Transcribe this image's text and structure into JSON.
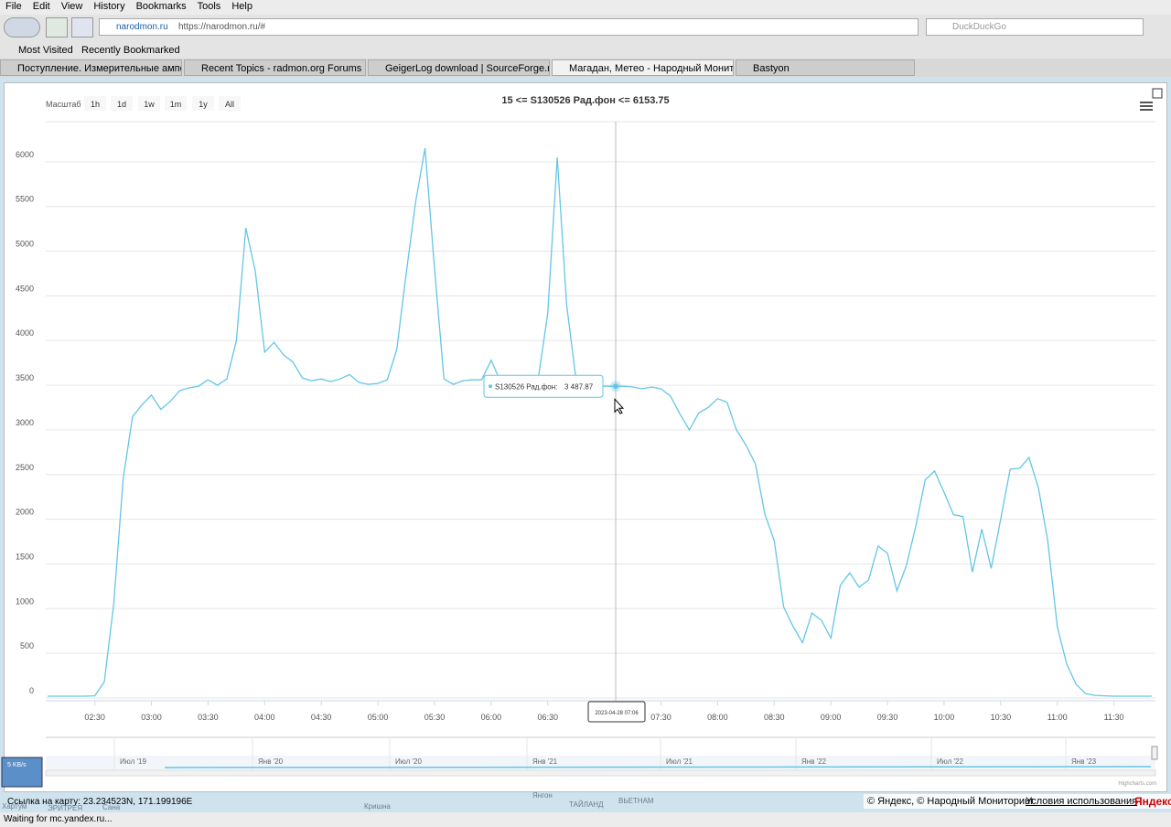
{
  "browser": {
    "menu": [
      "File",
      "Edit",
      "View",
      "History",
      "Bookmarks",
      "Tools",
      "Help"
    ],
    "site": "narodmon.ru",
    "url": "https://narodmon.ru/#",
    "search": "DuckDuckGo",
    "bookmarks": [
      "Most Visited",
      "Recently Bookmarked"
    ],
    "tabs": [
      "Поступление. Измерительные ампермет...",
      "Recent Topics - radmon.org Forums",
      "GeigerLog download | SourceForge.net",
      "Магадан, Метео - Народный Мониторинг",
      "Bastyon"
    ],
    "status": "Waiting for mc.yandex.ru..."
  },
  "map": {
    "coords": "Ссылка на карту: 23.234523N, 171.199196E",
    "copyright": "© Яндекс, © Народный Мониторинг",
    "terms": "Условия использования",
    "logo": "Яндекс",
    "speed": "5 KB/s",
    "places": [
      "Хартум",
      "ЭРИТРЕЯ",
      "Сана",
      "Кришна",
      "Янгон",
      "ТАЙЛАНД",
      "ВЬЕТНАМ"
    ]
  },
  "chart_data": {
    "type": "line",
    "title": "15 <= S130526 Рад.фон <= 6153.75",
    "range_label": "Масштаб",
    "range_buttons": [
      "1h",
      "1d",
      "1w",
      "1m",
      "1y",
      "All"
    ],
    "color": "#63c6e6",
    "x": [
      "02:05",
      "02:10",
      "02:15",
      "02:20",
      "02:25",
      "02:30",
      "02:35",
      "02:40",
      "02:45",
      "02:50",
      "02:55",
      "03:00",
      "03:05",
      "03:10",
      "03:15",
      "03:20",
      "03:25",
      "03:30",
      "03:35",
      "03:40",
      "03:45",
      "03:50",
      "03:55",
      "04:00",
      "04:05",
      "04:10",
      "04:15",
      "04:20",
      "04:25",
      "04:30",
      "04:35",
      "04:40",
      "04:45",
      "04:50",
      "04:55",
      "05:00",
      "05:05",
      "05:10",
      "05:15",
      "05:20",
      "05:25",
      "05:30",
      "05:35",
      "05:40",
      "05:45",
      "05:50",
      "05:55",
      "06:00",
      "06:05",
      "06:10",
      "06:15",
      "06:20",
      "06:25",
      "06:30",
      "06:35",
      "06:40",
      "06:45",
      "06:50",
      "06:55",
      "07:00",
      "07:05",
      "07:10",
      "07:15",
      "07:20",
      "07:25",
      "07:30",
      "07:35",
      "07:40",
      "07:45",
      "07:50",
      "07:55",
      "08:00",
      "08:05",
      "08:10",
      "08:15",
      "08:20",
      "08:25",
      "08:30",
      "08:35",
      "08:40",
      "08:45",
      "08:50",
      "08:55",
      "09:00",
      "09:05",
      "09:10",
      "09:15",
      "09:20",
      "09:25",
      "09:30",
      "09:35",
      "09:40",
      "09:45",
      "09:50",
      "09:55",
      "10:00",
      "10:05",
      "10:10",
      "10:15",
      "10:20",
      "10:25",
      "10:30",
      "10:35",
      "10:40",
      "10:45",
      "10:50",
      "10:55",
      "11:00",
      "11:05",
      "11:10",
      "11:15",
      "11:20",
      "11:25",
      "11:30",
      "11:35",
      "11:40",
      "11:45",
      "11:50"
    ],
    "values": [
      20,
      20,
      20,
      20,
      20,
      25,
      180,
      1050,
      2450,
      3150,
      3280,
      3390,
      3230,
      3320,
      3440,
      3470,
      3490,
      3560,
      3500,
      3570,
      4000,
      5260,
      4780,
      3870,
      3980,
      3840,
      3760,
      3580,
      3550,
      3570,
      3540,
      3570,
      3620,
      3530,
      3510,
      3520,
      3560,
      3900,
      4750,
      5550,
      6154,
      4800,
      3570,
      3510,
      3550,
      3560,
      3560,
      3780,
      3540,
      3560,
      3570,
      3570,
      3580,
      4300,
      6050,
      4400,
      3560,
      3500,
      3490,
      3490,
      3487.87,
      3490,
      3480,
      3460,
      3480,
      3460,
      3380,
      3180,
      3000,
      3190,
      3250,
      3350,
      3310,
      3000,
      2830,
      2620,
      2060,
      1760,
      1020,
      800,
      620,
      950,
      870,
      670,
      1260,
      1400,
      1240,
      1320,
      1700,
      1620,
      1200,
      1480,
      1920,
      2440,
      2540,
      2300,
      2050,
      2030,
      1410,
      1890,
      1450,
      2000,
      2560,
      2570,
      2690,
      2350,
      1750,
      800,
      380,
      150,
      50,
      30,
      25,
      20,
      20,
      20,
      20,
      20
    ],
    "xlim": [
      "02:04",
      "11:52"
    ],
    "xticks": [
      "02:30",
      "03:00",
      "03:30",
      "04:00",
      "04:30",
      "05:00",
      "05:30",
      "06:00",
      "06:30",
      "07:00",
      "07:30",
      "08:00",
      "08:30",
      "09:00",
      "09:30",
      "10:00",
      "10:30",
      "11:00",
      "11:30"
    ],
    "ylim": [
      0,
      6500
    ],
    "yticks": [
      0,
      500,
      1000,
      1500,
      2000,
      2500,
      3000,
      3500,
      4000,
      4500,
      5000,
      5500,
      6000
    ],
    "grid": true,
    "tooltip": {
      "series_label": "S130526 Рад.фон:",
      "value": 3487.87,
      "value_label": "3 487.87",
      "x_label": "2023-04-28 07:06"
    },
    "navigator_labels": [
      "Июл '19",
      "Янв '20",
      "Июл '20",
      "Янв '21",
      "Июл '21",
      "Янв '22",
      "Июл '22",
      "Янв '23"
    ],
    "credits": "Highcharts.com"
  }
}
